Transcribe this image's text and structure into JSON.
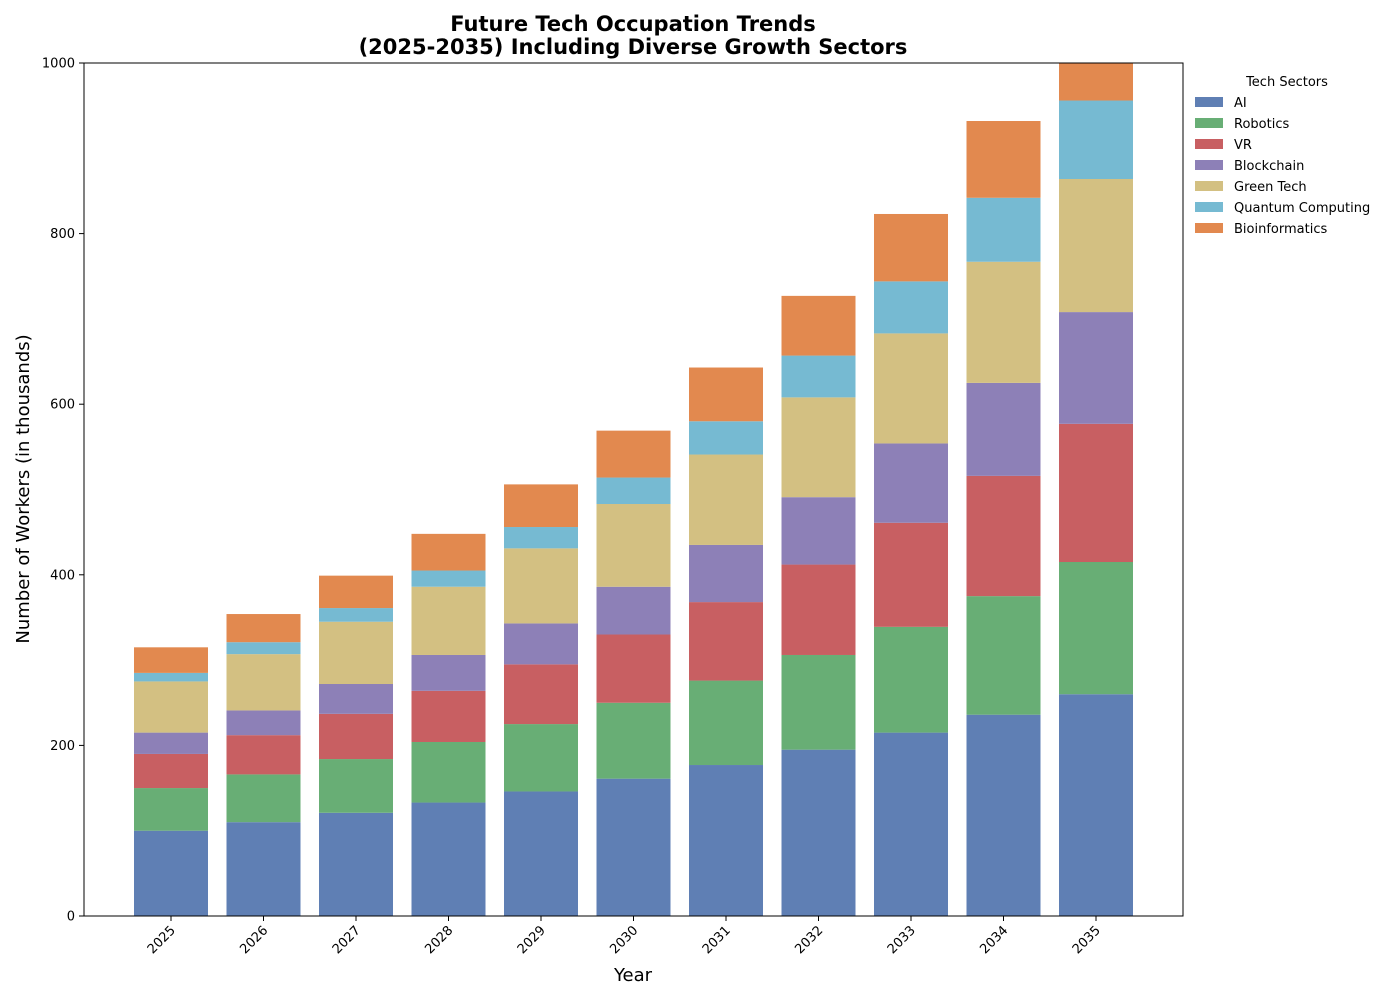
{
  "chart_data": {
    "type": "bar",
    "stacked": true,
    "title_line1": "Future Tech Occupation Trends",
    "title_line2": "(2025-2035) Including Diverse Growth Sectors",
    "xlabel": "Year",
    "ylabel": "Number of Workers (in thousands)",
    "ylim": [
      0,
      1000
    ],
    "yticks": [
      0,
      200,
      400,
      600,
      800,
      1000
    ],
    "categories": [
      "2025",
      "2026",
      "2027",
      "2028",
      "2029",
      "2030",
      "2031",
      "2032",
      "2033",
      "2034",
      "2035"
    ],
    "legend_title": "Tech Sectors",
    "legend_position": "upper-right-outside",
    "series": [
      {
        "name": "AI",
        "color": "#5f7fb4",
        "values": [
          100,
          110,
          121,
          133,
          146,
          161,
          177,
          195,
          215,
          236,
          260
        ]
      },
      {
        "name": "Robotics",
        "color": "#68ae75",
        "values": [
          50,
          56,
          63,
          71,
          79,
          89,
          99,
          111,
          124,
          139,
          155
        ]
      },
      {
        "name": "VR",
        "color": "#c85f62",
        "values": [
          40,
          46,
          53,
          60,
          70,
          80,
          92,
          106,
          122,
          141,
          162
        ]
      },
      {
        "name": "Blockchain",
        "color": "#8d80b7",
        "values": [
          25,
          29,
          35,
          42,
          48,
          56,
          67,
          79,
          93,
          109,
          131
        ]
      },
      {
        "name": "Green Tech",
        "color": "#d3c082",
        "values": [
          60,
          66,
          73,
          80,
          88,
          97,
          106,
          117,
          129,
          142,
          156
        ]
      },
      {
        "name": "Quantum Computing",
        "color": "#76bad2",
        "values": [
          10,
          14,
          16,
          19,
          25,
          31,
          39,
          49,
          61,
          75,
          92
        ]
      },
      {
        "name": "Bioinformatics",
        "color": "#e2894f",
        "values": [
          30,
          33,
          38,
          43,
          50,
          55,
          63,
          70,
          79,
          90,
          44
        ]
      }
    ]
  }
}
